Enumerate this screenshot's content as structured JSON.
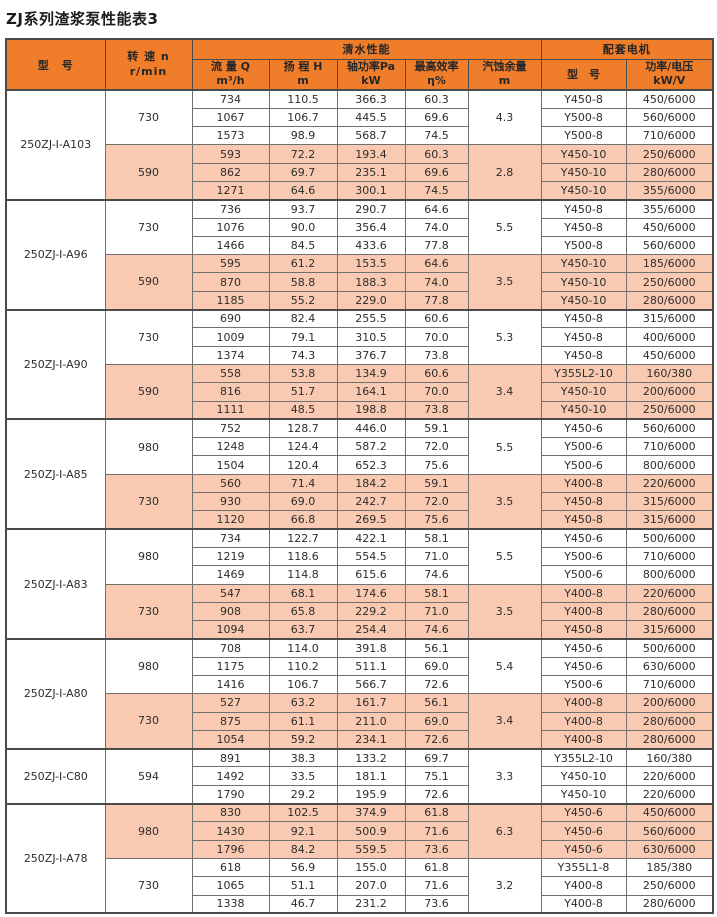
{
  "title": "ZJ系列渣浆泵性能表3",
  "colors": {
    "header_bg": "#ef7d2a",
    "shaded_row_bg": "#f9cab1",
    "outer_border": "#4a4a4a",
    "grid_line": "#707070",
    "text": "#2d2d2d"
  },
  "header": {
    "model": "型　号",
    "speed": {
      "l1": "转 速 n",
      "l2": "r/min"
    },
    "water_group": "清水性能",
    "motor_group": "配套电机",
    "cols": [
      {
        "l1": "流 量 Q",
        "l2": "m³/h"
      },
      {
        "l1": "扬 程 H",
        "l2": "m"
      },
      {
        "l1": "轴功率Pa",
        "l2": "kW"
      },
      {
        "l1": "最高效率",
        "l2": "η%"
      },
      {
        "l1": "汽蚀余量",
        "l2": "m"
      },
      {
        "l1": "型　号",
        "l2": ""
      },
      {
        "l1": "功率/电压",
        "l2": "kW/V"
      }
    ]
  },
  "sections": [
    {
      "model": "250ZJ-I-A103",
      "groups": [
        {
          "speed": "730",
          "shaded": false,
          "npsh": "4.3",
          "rows": [
            {
              "q": "734",
              "h": "110.5",
              "p": "366.3",
              "eff": "60.3",
              "motor": "Y450-8",
              "power": "450/6000"
            },
            {
              "q": "1067",
              "h": "106.7",
              "p": "445.5",
              "eff": "69.6",
              "motor": "Y500-8",
              "power": "560/6000"
            },
            {
              "q": "1573",
              "h": "98.9",
              "p": "568.7",
              "eff": "74.5",
              "motor": "Y500-8",
              "power": "710/6000"
            }
          ]
        },
        {
          "speed": "590",
          "shaded": true,
          "npsh": "2.8",
          "rows": [
            {
              "q": "593",
              "h": "72.2",
              "p": "193.4",
              "eff": "60.3",
              "motor": "Y450-10",
              "power": "250/6000"
            },
            {
              "q": "862",
              "h": "69.7",
              "p": "235.1",
              "eff": "69.6",
              "motor": "Y450-10",
              "power": "280/6000"
            },
            {
              "q": "1271",
              "h": "64.6",
              "p": "300.1",
              "eff": "74.5",
              "motor": "Y450-10",
              "power": "355/6000"
            }
          ]
        }
      ]
    },
    {
      "model": "250ZJ-I-A96",
      "groups": [
        {
          "speed": "730",
          "shaded": false,
          "npsh": "5.5",
          "rows": [
            {
              "q": "736",
              "h": "93.7",
              "p": "290.7",
              "eff": "64.6",
              "motor": "Y450-8",
              "power": "355/6000"
            },
            {
              "q": "1076",
              "h": "90.0",
              "p": "356.4",
              "eff": "74.0",
              "motor": "Y450-8",
              "power": "450/6000"
            },
            {
              "q": "1466",
              "h": "84.5",
              "p": "433.6",
              "eff": "77.8",
              "motor": "Y500-8",
              "power": "560/6000"
            }
          ]
        },
        {
          "speed": "590",
          "shaded": true,
          "npsh": "3.5",
          "rows": [
            {
              "q": "595",
              "h": "61.2",
              "p": "153.5",
              "eff": "64.6",
              "motor": "Y450-10",
              "power": "185/6000"
            },
            {
              "q": "870",
              "h": "58.8",
              "p": "188.3",
              "eff": "74.0",
              "motor": "Y450-10",
              "power": "250/6000"
            },
            {
              "q": "1185",
              "h": "55.2",
              "p": "229.0",
              "eff": "77.8",
              "motor": "Y450-10",
              "power": "280/6000"
            }
          ]
        }
      ]
    },
    {
      "model": "250ZJ-I-A90",
      "groups": [
        {
          "speed": "730",
          "shaded": false,
          "npsh": "5.3",
          "rows": [
            {
              "q": "690",
              "h": "82.4",
              "p": "255.5",
              "eff": "60.6",
              "motor": "Y450-8",
              "power": "315/6000"
            },
            {
              "q": "1009",
              "h": "79.1",
              "p": "310.5",
              "eff": "70.0",
              "motor": "Y450-8",
              "power": "400/6000"
            },
            {
              "q": "1374",
              "h": "74.3",
              "p": "376.7",
              "eff": "73.8",
              "motor": "Y450-8",
              "power": "450/6000"
            }
          ]
        },
        {
          "speed": "590",
          "shaded": true,
          "npsh": "3.4",
          "rows": [
            {
              "q": "558",
              "h": "53.8",
              "p": "134.9",
              "eff": "60.6",
              "motor": "Y355L2-10",
              "power": "160/380"
            },
            {
              "q": "816",
              "h": "51.7",
              "p": "164.1",
              "eff": "70.0",
              "motor": "Y450-10",
              "power": "200/6000"
            },
            {
              "q": "1111",
              "h": "48.5",
              "p": "198.8",
              "eff": "73.8",
              "motor": "Y450-10",
              "power": "250/6000"
            }
          ]
        }
      ]
    },
    {
      "model": "250ZJ-I-A85",
      "groups": [
        {
          "speed": "980",
          "shaded": false,
          "npsh": "5.5",
          "rows": [
            {
              "q": "752",
              "h": "128.7",
              "p": "446.0",
              "eff": "59.1",
              "motor": "Y450-6",
              "power": "560/6000"
            },
            {
              "q": "1248",
              "h": "124.4",
              "p": "587.2",
              "eff": "72.0",
              "motor": "Y500-6",
              "power": "710/6000"
            },
            {
              "q": "1504",
              "h": "120.4",
              "p": "652.3",
              "eff": "75.6",
              "motor": "Y500-6",
              "power": "800/6000"
            }
          ]
        },
        {
          "speed": "730",
          "shaded": true,
          "npsh": "3.5",
          "rows": [
            {
              "q": "560",
              "h": "71.4",
              "p": "184.2",
              "eff": "59.1",
              "motor": "Y400-8",
              "power": "220/6000"
            },
            {
              "q": "930",
              "h": "69.0",
              "p": "242.7",
              "eff": "72.0",
              "motor": "Y450-8",
              "power": "315/6000"
            },
            {
              "q": "1120",
              "h": "66.8",
              "p": "269.5",
              "eff": "75.6",
              "motor": "Y450-8",
              "power": "315/6000"
            }
          ]
        }
      ]
    },
    {
      "model": "250ZJ-I-A83",
      "groups": [
        {
          "speed": "980",
          "shaded": false,
          "npsh": "5.5",
          "rows": [
            {
              "q": "734",
              "h": "122.7",
              "p": "422.1",
              "eff": "58.1",
              "motor": "Y450-6",
              "power": "500/6000"
            },
            {
              "q": "1219",
              "h": "118.6",
              "p": "554.5",
              "eff": "71.0",
              "motor": "Y500-6",
              "power": "710/6000"
            },
            {
              "q": "1469",
              "h": "114.8",
              "p": "615.6",
              "eff": "74.6",
              "motor": "Y500-6",
              "power": "800/6000"
            }
          ]
        },
        {
          "speed": "730",
          "shaded": true,
          "npsh": "3.5",
          "rows": [
            {
              "q": "547",
              "h": "68.1",
              "p": "174.6",
              "eff": "58.1",
              "motor": "Y400-8",
              "power": "220/6000"
            },
            {
              "q": "908",
              "h": "65.8",
              "p": "229.2",
              "eff": "71.0",
              "motor": "Y400-8",
              "power": "280/6000"
            },
            {
              "q": "1094",
              "h": "63.7",
              "p": "254.4",
              "eff": "74.6",
              "motor": "Y450-8",
              "power": "315/6000"
            }
          ]
        }
      ]
    },
    {
      "model": "250ZJ-I-A80",
      "groups": [
        {
          "speed": "980",
          "shaded": false,
          "npsh": "5.4",
          "rows": [
            {
              "q": "708",
              "h": "114.0",
              "p": "391.8",
              "eff": "56.1",
              "motor": "Y450-6",
              "power": "500/6000"
            },
            {
              "q": "1175",
              "h": "110.2",
              "p": "511.1",
              "eff": "69.0",
              "motor": "Y450-6",
              "power": "630/6000"
            },
            {
              "q": "1416",
              "h": "106.7",
              "p": "566.7",
              "eff": "72.6",
              "motor": "Y500-6",
              "power": "710/6000"
            }
          ]
        },
        {
          "speed": "730",
          "shaded": true,
          "npsh": "3.4",
          "rows": [
            {
              "q": "527",
              "h": "63.2",
              "p": "161.7",
              "eff": "56.1",
              "motor": "Y400-8",
              "power": "200/6000"
            },
            {
              "q": "875",
              "h": "61.1",
              "p": "211.0",
              "eff": "69.0",
              "motor": "Y400-8",
              "power": "280/6000"
            },
            {
              "q": "1054",
              "h": "59.2",
              "p": "234.1",
              "eff": "72.6",
              "motor": "Y400-8",
              "power": "280/6000"
            }
          ]
        }
      ]
    },
    {
      "model": "250ZJ-I-C80",
      "groups": [
        {
          "speed": "594",
          "shaded": false,
          "npsh": "3.3",
          "rows": [
            {
              "q": "891",
              "h": "38.3",
              "p": "133.2",
              "eff": "69.7",
              "motor": "Y355L2-10",
              "power": "160/380"
            },
            {
              "q": "1492",
              "h": "33.5",
              "p": "181.1",
              "eff": "75.1",
              "motor": "Y450-10",
              "power": "220/6000"
            },
            {
              "q": "1790",
              "h": "29.2",
              "p": "195.9",
              "eff": "72.6",
              "motor": "Y450-10",
              "power": "220/6000"
            }
          ]
        }
      ]
    },
    {
      "model": "250ZJ-I-A78",
      "groups": [
        {
          "speed": "980",
          "shaded": true,
          "npsh": "6.3",
          "rows": [
            {
              "q": "830",
              "h": "102.5",
              "p": "374.9",
              "eff": "61.8",
              "motor": "Y450-6",
              "power": "450/6000"
            },
            {
              "q": "1430",
              "h": "92.1",
              "p": "500.9",
              "eff": "71.6",
              "motor": "Y450-6",
              "power": "560/6000"
            },
            {
              "q": "1796",
              "h": "84.2",
              "p": "559.5",
              "eff": "73.6",
              "motor": "Y450-6",
              "power": "630/6000"
            }
          ]
        },
        {
          "speed": "730",
          "shaded": false,
          "npsh": "3.2",
          "rows": [
            {
              "q": "618",
              "h": "56.9",
              "p": "155.0",
              "eff": "61.8",
              "motor": "Y355L1-8",
              "power": "185/380"
            },
            {
              "q": "1065",
              "h": "51.1",
              "p": "207.0",
              "eff": "71.6",
              "motor": "Y400-8",
              "power": "250/6000"
            },
            {
              "q": "1338",
              "h": "46.7",
              "p": "231.2",
              "eff": "73.6",
              "motor": "Y400-8",
              "power": "280/6000"
            }
          ]
        }
      ]
    }
  ]
}
